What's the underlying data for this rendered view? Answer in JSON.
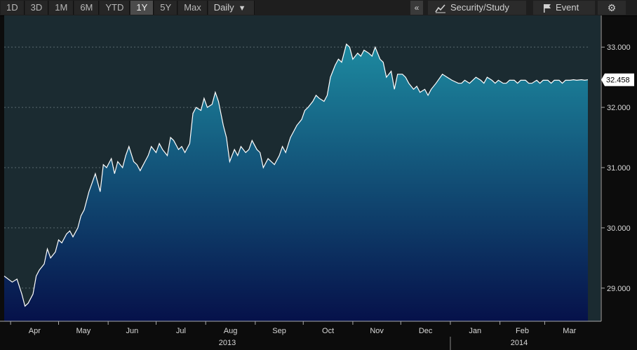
{
  "toolbar": {
    "ranges": [
      "1D",
      "3D",
      "1M",
      "6M",
      "YTD",
      "1Y",
      "5Y",
      "Max"
    ],
    "active_range": "1Y",
    "frequency": "Daily",
    "collapse": "«",
    "security_study": "Security/Study",
    "event": "Event",
    "settings_icon": "gear-icon"
  },
  "colors": {
    "line": "#ffffff",
    "fill_top": "#1d8aa0",
    "fill_bottom": "#06114a",
    "plot_bg": "#1b2b31",
    "last_price_bg": "#ffffff"
  },
  "chart_data": {
    "type": "area",
    "title": "",
    "xlabel": "",
    "ylabel": "",
    "ylim": [
      28.45,
      33.2
    ],
    "yticks": [
      29.0,
      30.0,
      31.0,
      32.0,
      33.0
    ],
    "ytick_labels": [
      "29.000",
      "30.000",
      "31.000",
      "32.000",
      "33.000"
    ],
    "last_value_label": "32.458",
    "x_axis_labels": [
      "Apr",
      "May",
      "Jun",
      "Jul",
      "Aug",
      "Sep",
      "Oct",
      "Nov",
      "Dec",
      "Jan",
      "Feb",
      "Mar"
    ],
    "years": [
      "2013",
      "2014"
    ],
    "grid": true,
    "series": [
      {
        "x": [
          "2013-03-28",
          "2013-04-02",
          "2013-04-05",
          "2013-04-08",
          "2013-04-10",
          "2013-04-12",
          "2013-04-15",
          "2013-04-17",
          "2013-04-19",
          "2013-04-22",
          "2013-04-24",
          "2013-04-26",
          "2013-04-29",
          "2013-05-01",
          "2013-05-03",
          "2013-05-06",
          "2013-05-08",
          "2013-05-10",
          "2013-05-13",
          "2013-05-15",
          "2013-05-17",
          "2013-05-20",
          "2013-05-22",
          "2013-05-24",
          "2013-05-27",
          "2013-05-29",
          "2013-05-31",
          "2013-06-03",
          "2013-06-05",
          "2013-06-07",
          "2013-06-10",
          "2013-06-12",
          "2013-06-14",
          "2013-06-17",
          "2013-06-19",
          "2013-06-21",
          "2013-06-24",
          "2013-06-26",
          "2013-06-28",
          "2013-07-01",
          "2013-07-03",
          "2013-07-05",
          "2013-07-08",
          "2013-07-10",
          "2013-07-12",
          "2013-07-15",
          "2013-07-17",
          "2013-07-19",
          "2013-07-22",
          "2013-07-24",
          "2013-07-26",
          "2013-07-29",
          "2013-07-31",
          "2013-08-02",
          "2013-08-05",
          "2013-08-07",
          "2013-08-09",
          "2013-08-12",
          "2013-08-14",
          "2013-08-16",
          "2013-08-19",
          "2013-08-21",
          "2013-08-23",
          "2013-08-26",
          "2013-08-28",
          "2013-08-30",
          "2013-09-02",
          "2013-09-04",
          "2013-09-06",
          "2013-09-09",
          "2013-09-11",
          "2013-09-13",
          "2013-09-16",
          "2013-09-18",
          "2013-09-20",
          "2013-09-23",
          "2013-09-25",
          "2013-09-27",
          "2013-09-30",
          "2013-10-02",
          "2013-10-04",
          "2013-10-07",
          "2013-10-09",
          "2013-10-11",
          "2013-10-14",
          "2013-10-16",
          "2013-10-18",
          "2013-10-21",
          "2013-10-23",
          "2013-10-25",
          "2013-10-28",
          "2013-10-30",
          "2013-11-01",
          "2013-11-04",
          "2013-11-06",
          "2013-11-08",
          "2013-11-11",
          "2013-11-13",
          "2013-11-15",
          "2013-11-18",
          "2013-11-20",
          "2013-11-22",
          "2013-11-25",
          "2013-11-27",
          "2013-11-29",
          "2013-12-02",
          "2013-12-04",
          "2013-12-06",
          "2013-12-09",
          "2013-12-11",
          "2013-12-13",
          "2013-12-16",
          "2013-12-18",
          "2013-12-20",
          "2013-12-23",
          "2013-12-27",
          "2013-12-30",
          "2014-01-02",
          "2014-01-06",
          "2014-01-08",
          "2014-01-10",
          "2014-01-13",
          "2014-01-15",
          "2014-01-17",
          "2014-01-20",
          "2014-01-22",
          "2014-01-24",
          "2014-01-27",
          "2014-01-29",
          "2014-01-31",
          "2014-02-03",
          "2014-02-05",
          "2014-02-07",
          "2014-02-10",
          "2014-02-12",
          "2014-02-14",
          "2014-02-17",
          "2014-02-19",
          "2014-02-21",
          "2014-02-24",
          "2014-02-26",
          "2014-02-28",
          "2014-03-03",
          "2014-03-05",
          "2014-03-07",
          "2014-03-10",
          "2014-03-12",
          "2014-03-14",
          "2014-03-17",
          "2014-03-19",
          "2014-03-21",
          "2014-03-24",
          "2014-03-26",
          "2014-03-28"
        ],
        "values": [
          29.2,
          29.1,
          29.15,
          28.9,
          28.7,
          28.75,
          28.9,
          29.2,
          29.3,
          29.4,
          29.65,
          29.5,
          29.6,
          29.8,
          29.75,
          29.9,
          29.95,
          29.85,
          30.0,
          30.2,
          30.3,
          30.6,
          30.75,
          30.9,
          30.6,
          31.05,
          31.0,
          31.15,
          30.9,
          31.1,
          31.0,
          31.2,
          31.35,
          31.1,
          31.05,
          30.95,
          31.1,
          31.2,
          31.35,
          31.25,
          31.4,
          31.3,
          31.2,
          31.5,
          31.45,
          31.3,
          31.35,
          31.25,
          31.4,
          31.9,
          32.0,
          31.95,
          32.15,
          32.0,
          32.05,
          32.25,
          32.1,
          31.7,
          31.5,
          31.1,
          31.3,
          31.2,
          31.35,
          31.25,
          31.3,
          31.45,
          31.3,
          31.25,
          31.0,
          31.15,
          31.1,
          31.05,
          31.2,
          31.35,
          31.25,
          31.5,
          31.6,
          31.7,
          31.8,
          31.95,
          32.0,
          32.1,
          32.2,
          32.15,
          32.1,
          32.2,
          32.5,
          32.7,
          32.8,
          32.75,
          33.05,
          33.0,
          32.8,
          32.9,
          32.85,
          32.95,
          32.9,
          32.85,
          33.0,
          32.8,
          32.75,
          32.5,
          32.6,
          32.3,
          32.55,
          32.55,
          32.5,
          32.4,
          32.3,
          32.35,
          32.25,
          32.3,
          32.2,
          32.3,
          32.4,
          32.55,
          32.5,
          32.45,
          32.4,
          32.4,
          32.45,
          32.4,
          32.45,
          32.5,
          32.45,
          32.4,
          32.5,
          32.45,
          32.4,
          32.45,
          32.4,
          32.4,
          32.45,
          32.45,
          32.4,
          32.45,
          32.45,
          32.4,
          32.4,
          32.45,
          32.4,
          32.45,
          32.45,
          32.4,
          32.45,
          32.45,
          32.4,
          32.45,
          32.45,
          32.46,
          32.45,
          32.46,
          32.45,
          32.458
        ]
      }
    ]
  }
}
